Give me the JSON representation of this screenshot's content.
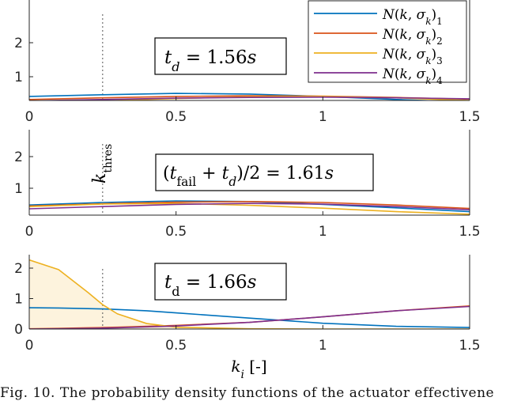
{
  "chart_data": [
    {
      "type": "line",
      "panel": 1,
      "annotation": "t_d = 1.56s",
      "xlim": [
        0,
        1.5
      ],
      "ylim": [
        0,
        2.5
      ],
      "x_ticks": [
        "0",
        "0.5",
        "1",
        "1.5"
      ],
      "y_ticks": [
        "1",
        "2"
      ],
      "x": [
        0,
        0.25,
        0.5,
        0.75,
        1.0,
        1.25,
        1.5
      ],
      "series": [
        {
          "name": "N(k,σk)1",
          "color": "#0072BD",
          "values": [
            0.42,
            0.47,
            0.51,
            0.49,
            0.42,
            0.33,
            0.25
          ]
        },
        {
          "name": "N(k,σk)2",
          "color": "#D95319",
          "values": [
            0.33,
            0.38,
            0.42,
            0.44,
            0.43,
            0.39,
            0.34
          ]
        },
        {
          "name": "N(k,σk)3",
          "color": "#EDB120",
          "values": [
            0.22,
            0.29,
            0.36,
            0.41,
            0.42,
            0.38,
            0.3
          ]
        },
        {
          "name": "N(k,σk)4",
          "color": "#7E2F8E",
          "values": [
            0.29,
            0.33,
            0.37,
            0.39,
            0.4,
            0.38,
            0.35
          ]
        }
      ]
    },
    {
      "type": "line",
      "panel": 2,
      "annotation": "(t_fail + t_d)/2 = 1.61s",
      "xlim": [
        0,
        1.5
      ],
      "ylim": [
        0,
        2.5
      ],
      "x_ticks": [
        "0",
        "0.5",
        "1",
        "1.5"
      ],
      "y_ticks": [
        "1",
        "2"
      ],
      "x": [
        0,
        0.25,
        0.5,
        0.75,
        1.0,
        1.25,
        1.5
      ],
      "series": [
        {
          "name": "N(k,σk)1",
          "color": "#0072BD",
          "values": [
            0.47,
            0.55,
            0.6,
            0.58,
            0.49,
            0.38,
            0.26
          ]
        },
        {
          "name": "N(k,σk)2",
          "color": "#D95319",
          "values": [
            0.44,
            0.51,
            0.56,
            0.58,
            0.55,
            0.47,
            0.36
          ]
        },
        {
          "name": "N(k,σk)3",
          "color": "#EDB120",
          "values": [
            0.42,
            0.5,
            0.52,
            0.46,
            0.37,
            0.26,
            0.18
          ]
        },
        {
          "name": "N(k,σk)4",
          "color": "#7E2F8E",
          "values": [
            0.35,
            0.42,
            0.49,
            0.52,
            0.5,
            0.42,
            0.32
          ]
        }
      ]
    },
    {
      "type": "line",
      "panel": 3,
      "annotation": "t_d = 1.66s",
      "xlabel": "k_i [-]",
      "xlim": [
        0,
        1.5
      ],
      "ylim": [
        0,
        2.5
      ],
      "x_ticks": [
        "0",
        "0.5",
        "1",
        "1.5"
      ],
      "y_ticks": [
        "0",
        "1",
        "2"
      ],
      "x": [
        0,
        0.1,
        0.2,
        0.25,
        0.3,
        0.4,
        0.5,
        0.75,
        1.0,
        1.25,
        1.5
      ],
      "series": [
        {
          "name": "N(k,σk)1",
          "color": "#0072BD",
          "values": [
            0.7,
            0.69,
            0.67,
            0.66,
            0.64,
            0.6,
            0.53,
            0.36,
            0.19,
            0.09,
            0.05
          ]
        },
        {
          "name": "N(k,σk)2",
          "color": "#D95319",
          "values": [
            0.01,
            0.02,
            0.04,
            0.05,
            0.06,
            0.09,
            0.12,
            0.22,
            0.4,
            0.6,
            0.76
          ]
        },
        {
          "name": "N(k,σk)3",
          "color": "#EDB120",
          "values": [
            2.27,
            1.95,
            1.2,
            0.8,
            0.5,
            0.18,
            0.06,
            0.01,
            0.0,
            0.0,
            0.0
          ]
        },
        {
          "name": "N(k,σk)4",
          "color": "#7E2F8E",
          "values": [
            0.0,
            0.01,
            0.02,
            0.03,
            0.04,
            0.07,
            0.1,
            0.22,
            0.4,
            0.6,
            0.74
          ]
        }
      ],
      "fill_series": "N(k,σk)3",
      "fill_color": "#FDF3DD"
    }
  ],
  "threshold": {
    "value": 0.25,
    "label": "k_thres"
  },
  "caption": "Fig. 10.   The probability density functions of the actuator effectivene"
}
